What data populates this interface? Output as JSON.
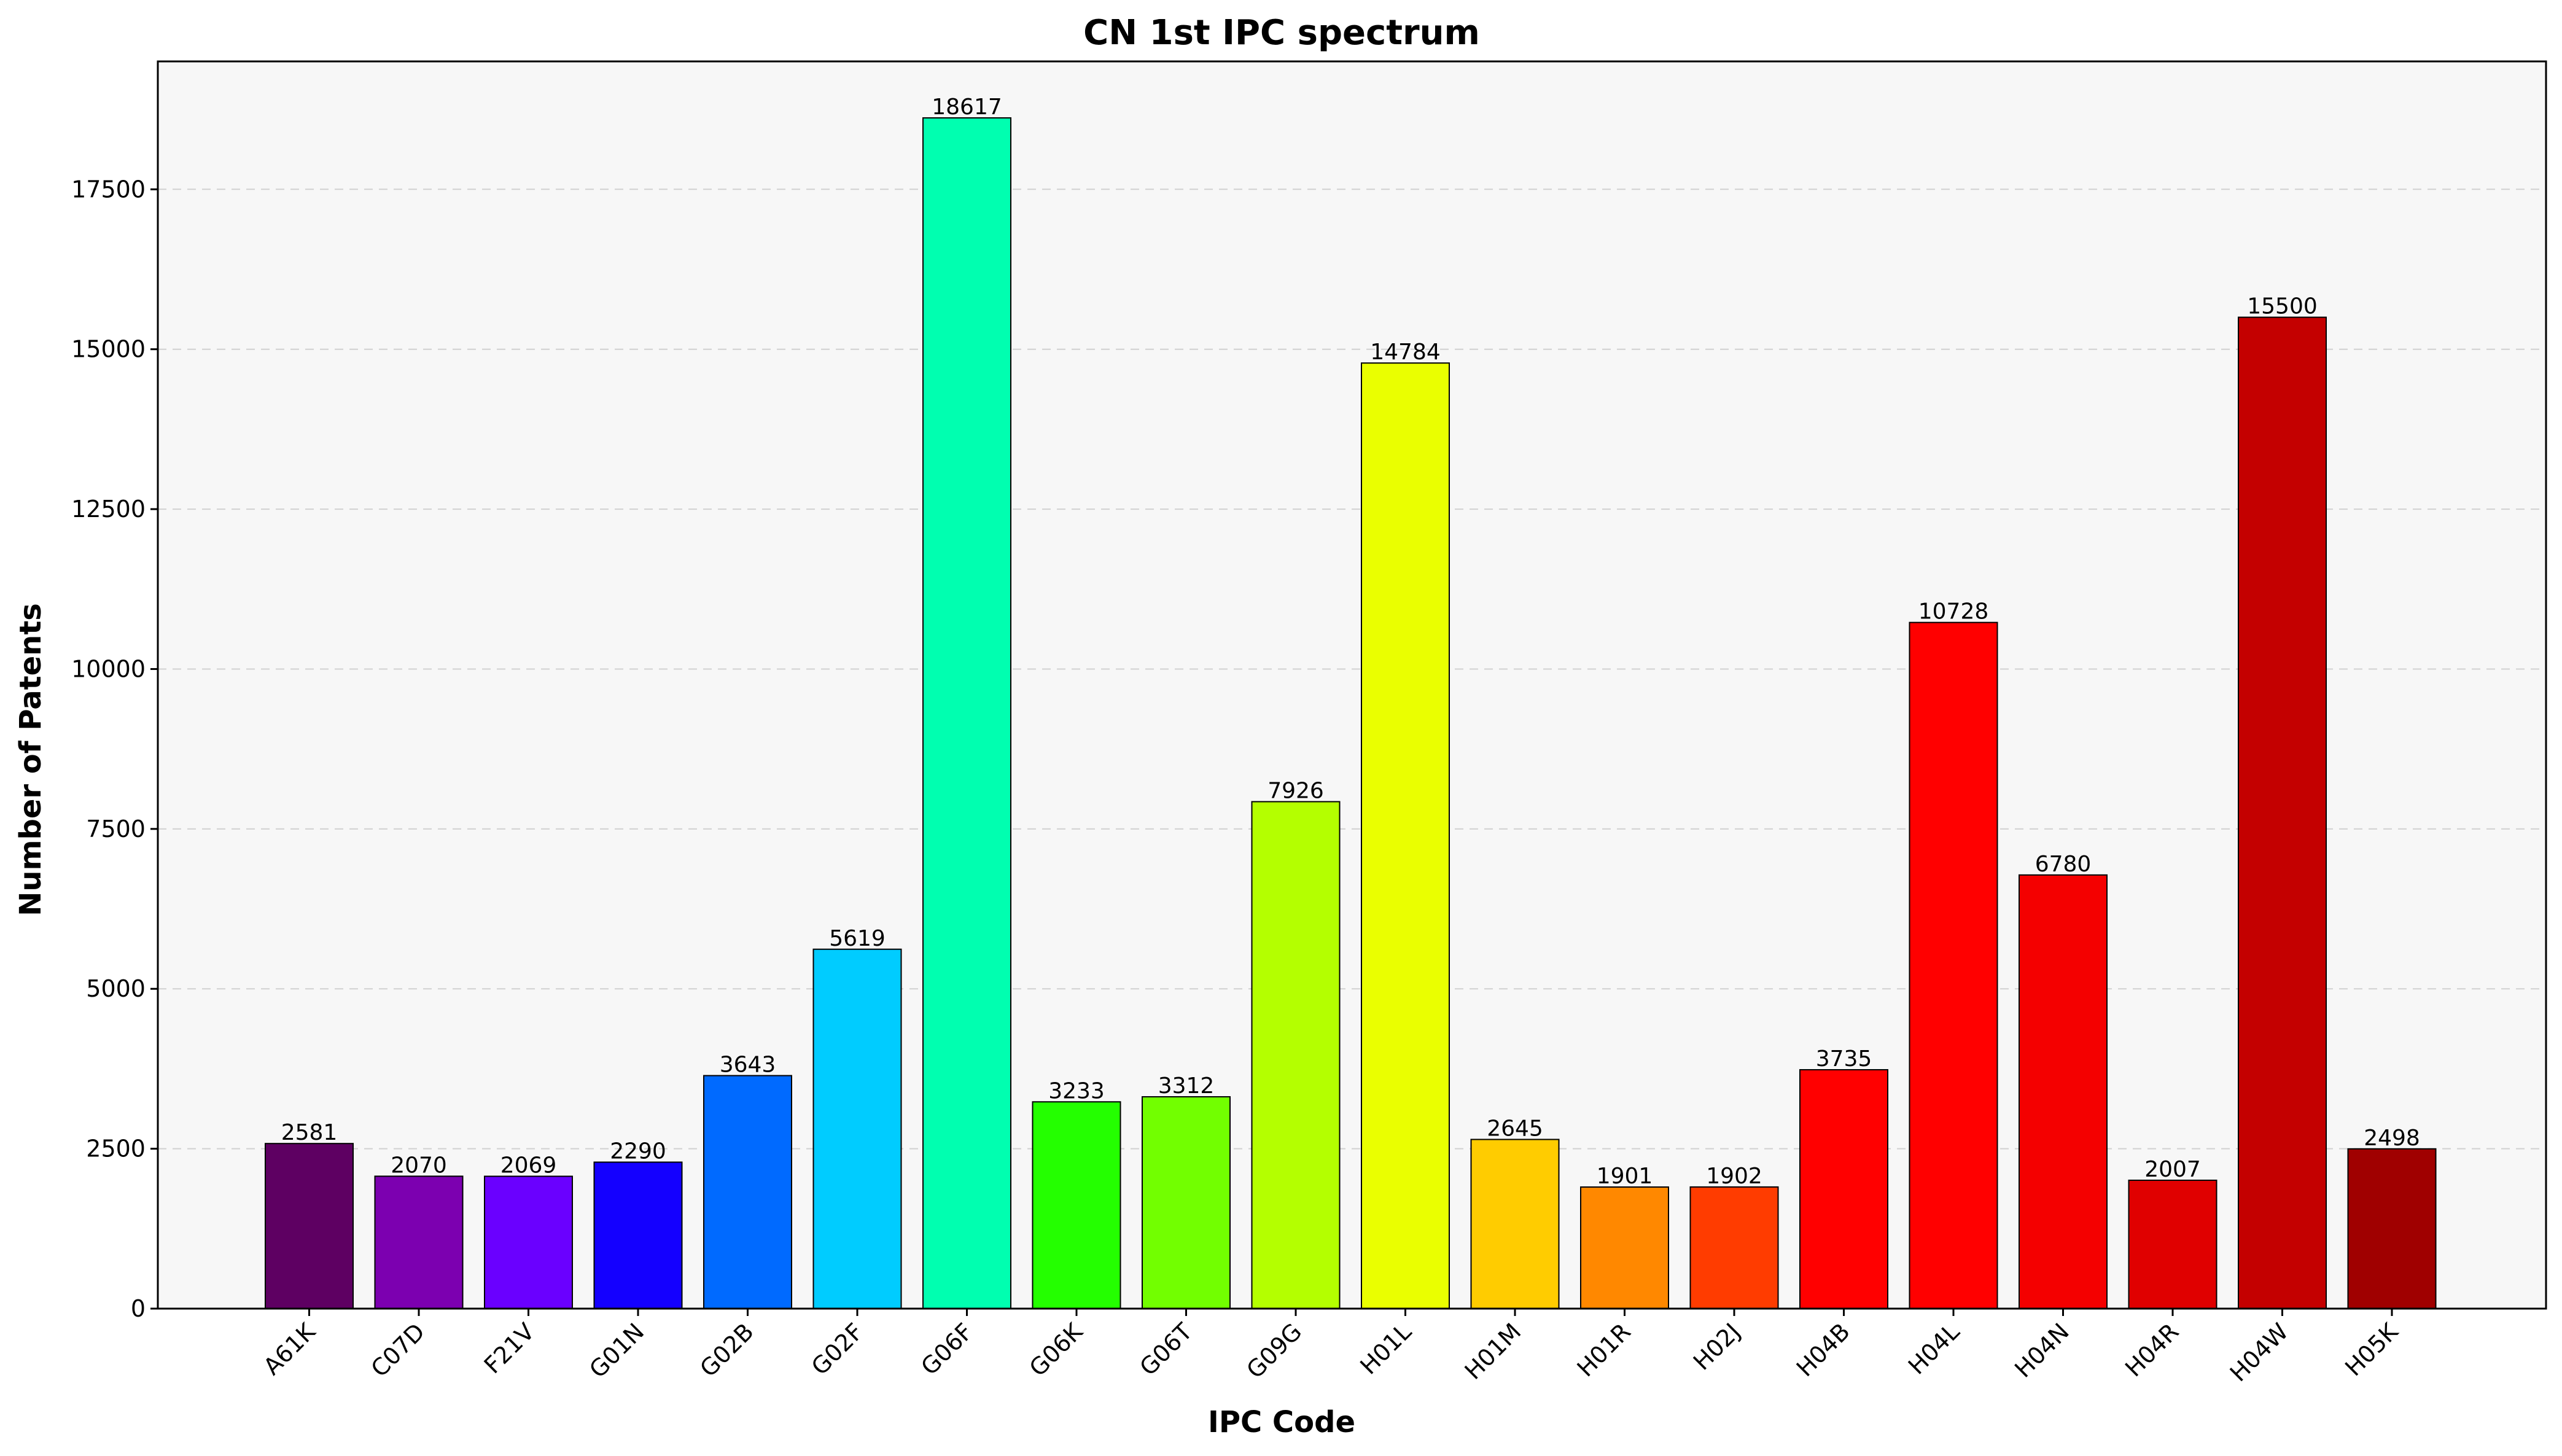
{
  "chart_data": {
    "type": "bar",
    "title": "CN 1st IPC spectrum",
    "xlabel": "IPC Code",
    "ylabel": "Number of Patents",
    "ylim": [
      0,
      19500
    ],
    "yticks": [
      0,
      2500,
      5000,
      7500,
      10000,
      12500,
      15000,
      17500
    ],
    "grid": "horizontal dashed",
    "background": "#f7f7f7",
    "categories": [
      "A61K",
      "C07D",
      "F21V",
      "G01N",
      "G02B",
      "G02F",
      "G06F",
      "G06K",
      "G06T",
      "G09G",
      "H01L",
      "H01M",
      "H01R",
      "H02J",
      "H04B",
      "H04L",
      "H04N",
      "H04R",
      "H04W",
      "H05K"
    ],
    "values": [
      2581,
      2070,
      2069,
      2290,
      3643,
      5619,
      18617,
      3233,
      3312,
      7926,
      14784,
      2645,
      1901,
      1902,
      3735,
      10728,
      6780,
      2007,
      15500,
      2498
    ],
    "colors": [
      "#5e0062",
      "#7c00b0",
      "#6a00ff",
      "#1400ff",
      "#006aff",
      "#00ccff",
      "#00ffb0",
      "#24ff00",
      "#72ff00",
      "#b4ff00",
      "#eaff00",
      "#ffcc00",
      "#ff8800",
      "#ff3c00",
      "#ff0000",
      "#ff0000",
      "#f40000",
      "#e00000",
      "#c40000",
      "#a00000"
    ]
  }
}
